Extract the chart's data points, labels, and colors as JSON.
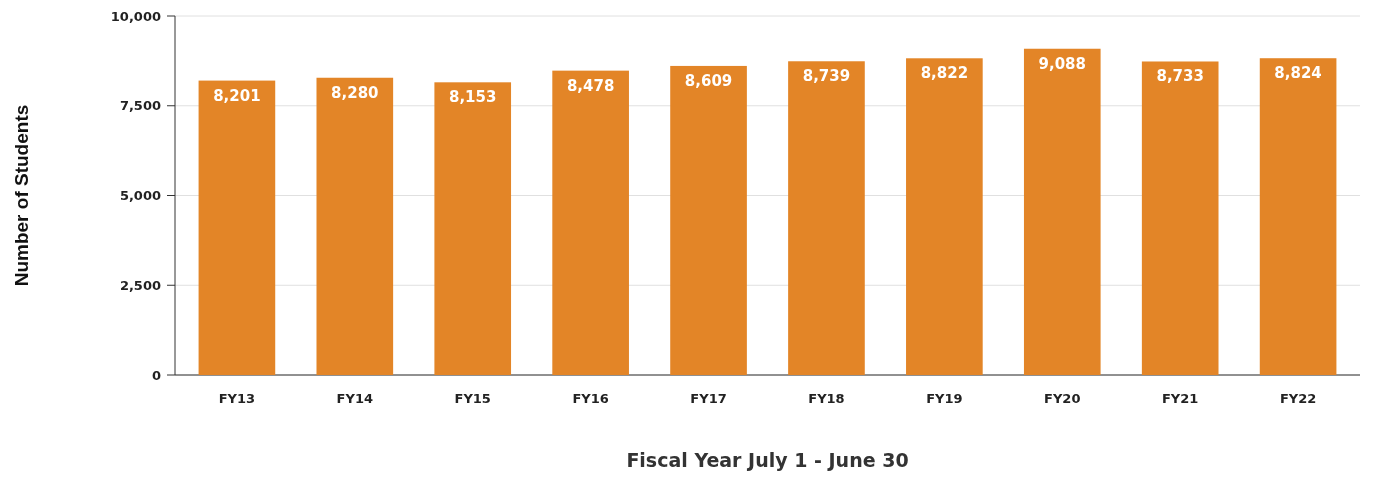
{
  "chart_data": {
    "type": "bar",
    "xlabel": "Fiscal Year July 1 - June 30",
    "ylabel": "Number of Students",
    "categories": [
      "FY13",
      "FY14",
      "FY15",
      "FY16",
      "FY17",
      "FY18",
      "FY19",
      "FY20",
      "FY21",
      "FY22"
    ],
    "values": [
      8201,
      8280,
      8153,
      8478,
      8609,
      8739,
      8822,
      9088,
      8733,
      8824
    ],
    "color": "#e38527",
    "ylim": [
      0,
      10000
    ],
    "yticks": [
      {
        "value": 0,
        "label": "0"
      },
      {
        "value": 2500,
        "label": "2,500"
      },
      {
        "value": 5000,
        "label": "5,000"
      },
      {
        "value": 7500,
        "label": "7,500"
      },
      {
        "value": 10000,
        "label": "10,000"
      }
    ],
    "value_labels": [
      "8,201",
      "8,280",
      "8,153",
      "8,478",
      "8,609",
      "8,739",
      "8,822",
      "9,088",
      "8,733",
      "8,824"
    ],
    "grid": "y"
  }
}
